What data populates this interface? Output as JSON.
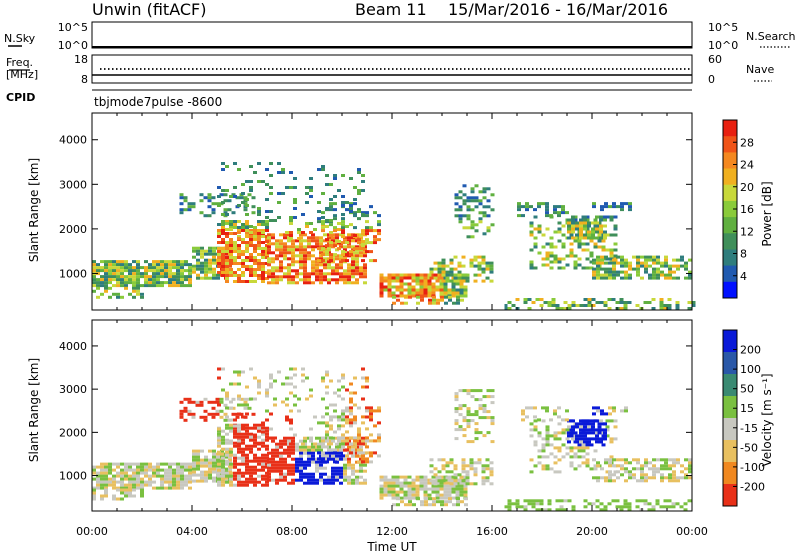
{
  "header": {
    "station": "Unwin (fitACF)",
    "beam_label": "Beam 11",
    "date_range": "15/Mar/2016 - 16/Mar/2016"
  },
  "top_panels": {
    "nsky_label": "N.Sky",
    "nsky_ticks": [
      "10^5",
      "10^0"
    ],
    "nsearch_label": "N.Search",
    "nsearch_ticks": [
      "10^5",
      "10^0"
    ],
    "freq_label_1": "Freq.",
    "freq_label_2": "[MHz]",
    "freq_ticks": [
      "18",
      "8"
    ],
    "nave_label": "Nave",
    "nave_ticks": [
      "60",
      "0"
    ],
    "cpid_label": "CPID",
    "cpid_value": "tbjmode7pulse -8600"
  },
  "chart_data": [
    {
      "type": "heatmap",
      "panel": "power",
      "xlabel": "Time UT",
      "ylabel": "Slant Range [km]",
      "xlim": [
        0,
        24
      ],
      "ylim": [
        180,
        4600
      ],
      "y_ticks": [
        "1000",
        "2000",
        "3000",
        "4000"
      ],
      "colorbar_label": "Power [dB]",
      "colorbar_ticks": [
        "4",
        "8",
        "12",
        "16",
        "20",
        "24",
        "28"
      ],
      "colorbar_colors": [
        "#0010ff",
        "#205ab0",
        "#2f7d7d",
        "#3f8f5a",
        "#60b040",
        "#8acb3a",
        "#c8d83a",
        "#f0b020",
        "#f48820",
        "#f05418",
        "#e82010"
      ]
    },
    {
      "type": "heatmap",
      "panel": "velocity",
      "xlabel": "Time UT",
      "ylabel": "Slant Range [km]",
      "xlim": [
        0,
        24
      ],
      "ylim": [
        180,
        4600
      ],
      "y_ticks": [
        "1000",
        "2000",
        "3000",
        "4000"
      ],
      "x_ticks": [
        "00:00",
        "04:00",
        "08:00",
        "12:00",
        "16:00",
        "20:00",
        "00:00"
      ],
      "colorbar_label": "Velocity [m s⁻¹]",
      "colorbar_ticks": [
        "200",
        "100",
        "50",
        "15",
        "-15",
        "-50",
        "-100",
        "-200"
      ],
      "colorbar_colors": [
        "#0a1ad8",
        "#2a58a8",
        "#3a8a72",
        "#7ac040",
        "#c8c8c0",
        "#e8c060",
        "#f08820",
        "#e83018"
      ]
    }
  ]
}
